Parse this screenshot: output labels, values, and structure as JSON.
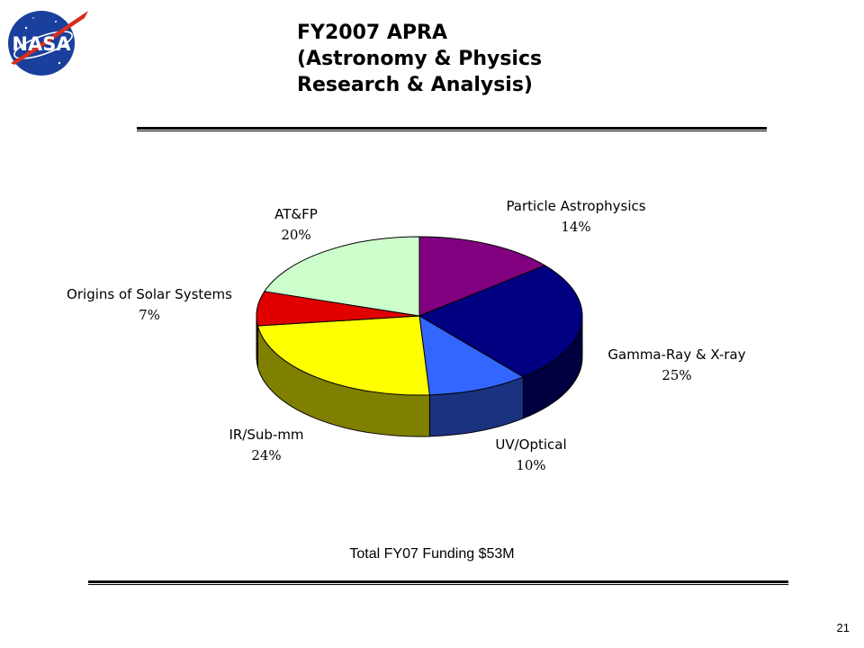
{
  "header": {
    "title_lines": [
      "FY2007 APRA",
      "(Astronomy & Physics",
      "Research & Analysis)"
    ]
  },
  "logo": {
    "text": "NASA"
  },
  "chart_data": {
    "type": "pie",
    "style": "3d",
    "slices": [
      {
        "label": "Particle Astrophysics",
        "value": 14,
        "pct_label": "14%",
        "color": "#800080"
      },
      {
        "label": "Gamma-Ray & X-ray",
        "value": 25,
        "pct_label": "25%",
        "color": "#000080"
      },
      {
        "label": "UV/Optical",
        "value": 10,
        "pct_label": "10%",
        "color": "#3366ff"
      },
      {
        "label": "IR/Sub-mm",
        "value": 24,
        "pct_label": "24%",
        "color": "#ffff00"
      },
      {
        "label": "Origins of Solar Systems",
        "value": 7,
        "pct_label": "7%",
        "color": "#e00000"
      },
      {
        "label": "AT&FP",
        "value": 20,
        "pct_label": "20%",
        "color": "#ccffcc"
      }
    ]
  },
  "footer": {
    "total": "Total FY07 Funding $53M",
    "page_number": "21"
  }
}
